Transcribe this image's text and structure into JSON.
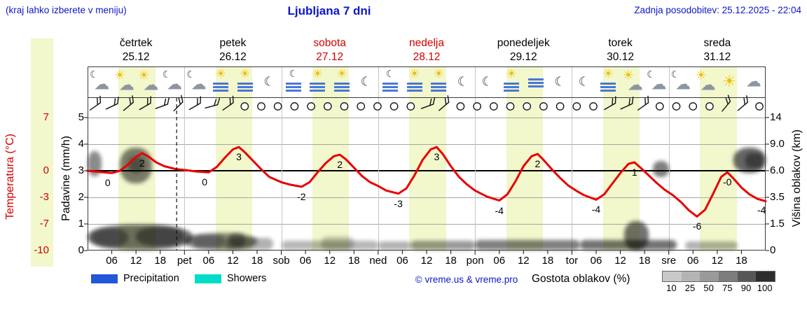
{
  "header": {
    "hint": "(kraj lahko izberete v meniju)",
    "title": "Ljubljana 7 dni",
    "updated": "Zadnja posodobitev: 25.12.2025 - 22:04"
  },
  "axes": {
    "temp_title": "Temperatura (°C)",
    "precip_title": "Padavine (mm/h)",
    "cloud_title": "Višina oblakov (km)",
    "temp_ticks": [
      {
        "label": "7",
        "line": 0
      },
      {
        "label": "0",
        "line": 2
      },
      {
        "label": "-3",
        "line": 3
      },
      {
        "label": "-7",
        "line": 4
      },
      {
        "label": "-10",
        "line": 5
      }
    ],
    "precip_ticks": [
      "5",
      "4",
      "3",
      "2",
      "1",
      "0"
    ],
    "cloud_ticks": [
      "14",
      "9.0",
      "6.0",
      "3.5",
      "1.5",
      "0"
    ]
  },
  "days": [
    {
      "name": "četrtek",
      "date": "25.12",
      "color": "#000000"
    },
    {
      "name": "petek",
      "date": "26.12",
      "color": "#000000"
    },
    {
      "name": "sobota",
      "date": "27.12",
      "color": "#d40000"
    },
    {
      "name": "nedelja",
      "date": "28.12",
      "color": "#d40000"
    },
    {
      "name": "ponedeljek",
      "date": "29.12",
      "color": "#000000"
    },
    {
      "name": "torek",
      "date": "30.12",
      "color": "#000000"
    },
    {
      "name": "sreda",
      "date": "31.12",
      "color": "#000000"
    }
  ],
  "day_icons": [
    [
      "cloud-moon",
      "sun-cloud",
      "sun-cloud",
      "cloud-moon"
    ],
    [
      "cloud-moon",
      "fog-sun",
      "fog-sun",
      "moon"
    ],
    [
      "fog-moon",
      "fog-sun",
      "fog-sun",
      "moon"
    ],
    [
      "fog-moon",
      "fog-sun",
      "fog-sun",
      "moon"
    ],
    [
      "moon",
      "fog-sun",
      "fog",
      "moon"
    ],
    [
      "moon",
      "fog-sun",
      "sun-cloud",
      "cloud-moon"
    ],
    [
      "cloud-moon",
      "sun-cloud",
      "sun",
      "cloud"
    ]
  ],
  "wind": [
    "barb:-35",
    "barb:-25",
    "barb:-40",
    "barb:-30",
    "barb:-20",
    "barb:-45",
    "barb:-30",
    "barb:-15",
    "barb:-35",
    "calm",
    "calm",
    "calm",
    "calm",
    "calm",
    "calm",
    "calm",
    "calm",
    "calm",
    "calm",
    "calm",
    "barb:-20",
    "barb:-40",
    "calm",
    "calm",
    "calm",
    "calm",
    "calm",
    "calm",
    "calm",
    "calm",
    "calm",
    "barb:-30",
    "barb:-25",
    "barb:-35",
    "calm",
    "calm",
    "calm",
    "calm",
    "barb:-50",
    "barb:-40",
    "calm"
  ],
  "x_axis": {
    "hour_labels": [
      "06",
      "12",
      "18"
    ],
    "day_abbrs": [
      "pet",
      "sob",
      "ned",
      "pon",
      "tor",
      "sre"
    ]
  },
  "legend": {
    "precipitation": "Precipitation",
    "showers": "Showers",
    "credit": "© vreme.us & vreme.pro",
    "cloud_density": "Gostota oblakov (%)",
    "scale_labels": [
      "10",
      "25",
      "50",
      "75",
      "90",
      "100"
    ],
    "scale_colors": [
      "#c9c9c9",
      "#b4b4b4",
      "#9a9a9a",
      "#7c7c7c",
      "#575757",
      "#2d2d2d"
    ]
  },
  "colors": {
    "blue_text": "#0d16c9",
    "red_text": "#d40000",
    "day_band": "#f2f7cc",
    "curve_red": "#e80000",
    "precip_blue": "#2356d9",
    "showers_cyan": "#00dcc8",
    "fog_icon_blue": "#4a78d8",
    "grid_gray": "#a5a5a5"
  },
  "chart_data": {
    "type": "line",
    "title": "Ljubljana 7 dni",
    "x_unit": "hours from četrtek 25.12 00:00 (7 days, 168 h)",
    "y_axes": {
      "temperature_c": {
        "title": "Temperatura (°C)",
        "ticks": [
          7,
          0,
          -3,
          -7,
          -10
        ]
      },
      "precipitation_mm_h": {
        "title": "Padavine (mm/h)",
        "ticks": [
          5,
          4,
          3,
          2,
          1,
          0
        ]
      },
      "cloud_height_km": {
        "title": "Višina oblakov (km)",
        "ticks": [
          14,
          9.0,
          6.0,
          3.5,
          1.5,
          0
        ]
      }
    },
    "daylight_band_hours": [
      7.7,
      16.8
    ],
    "now_marker_hour": 22.07,
    "temperature_series": [
      [
        0,
        0
      ],
      [
        2,
        -0.1
      ],
      [
        4,
        -0.2
      ],
      [
        6,
        -0.3
      ],
      [
        8,
        0
      ],
      [
        10,
        0.8
      ],
      [
        12,
        1.8
      ],
      [
        13.5,
        2.3
      ],
      [
        15,
        1.9
      ],
      [
        17,
        1.1
      ],
      [
        19,
        0.6
      ],
      [
        22,
        0.2
      ],
      [
        24,
        0.1
      ],
      [
        27,
        -0.1
      ],
      [
        30,
        -0.2
      ],
      [
        32,
        0.5
      ],
      [
        34,
        1.7
      ],
      [
        36,
        2.8
      ],
      [
        37.5,
        3.1
      ],
      [
        39,
        2.4
      ],
      [
        41,
        1.3
      ],
      [
        43,
        0.2
      ],
      [
        45,
        -0.8
      ],
      [
        48,
        -1.5
      ],
      [
        50,
        -1.8
      ],
      [
        53,
        -2.1
      ],
      [
        55,
        -1.5
      ],
      [
        57,
        -0.2
      ],
      [
        59,
        1
      ],
      [
        61,
        1.9
      ],
      [
        62.5,
        2.1
      ],
      [
        64,
        1.5
      ],
      [
        66,
        0.4
      ],
      [
        68,
        -0.7
      ],
      [
        70,
        -1.5
      ],
      [
        72,
        -2
      ],
      [
        74,
        -2.6
      ],
      [
        77,
        -3
      ],
      [
        79,
        -2.3
      ],
      [
        81,
        -0.6
      ],
      [
        83,
        1.4
      ],
      [
        85,
        2.8
      ],
      [
        86.5,
        3.1
      ],
      [
        88,
        2.2
      ],
      [
        90,
        0.6
      ],
      [
        92,
        -0.8
      ],
      [
        94,
        -1.8
      ],
      [
        96,
        -2.6
      ],
      [
        99,
        -3.4
      ],
      [
        102,
        -3.9
      ],
      [
        104,
        -3.1
      ],
      [
        106,
        -1.4
      ],
      [
        108,
        0.6
      ],
      [
        110,
        1.9
      ],
      [
        111.5,
        2.2
      ],
      [
        113,
        1.4
      ],
      [
        115,
        0.2
      ],
      [
        117,
        -0.9
      ],
      [
        119,
        -1.9
      ],
      [
        121,
        -2.6
      ],
      [
        123,
        -3.2
      ],
      [
        126,
        -3.8
      ],
      [
        128,
        -3.1
      ],
      [
        130,
        -1.7
      ],
      [
        132,
        -0.3
      ],
      [
        134,
        0.9
      ],
      [
        135.5,
        1.1
      ],
      [
        137,
        0.4
      ],
      [
        139,
        -0.6
      ],
      [
        141,
        -1.6
      ],
      [
        143,
        -2.5
      ],
      [
        145,
        -3.2
      ],
      [
        147,
        -4.1
      ],
      [
        149,
        -5.2
      ],
      [
        151,
        -6
      ],
      [
        153,
        -5.1
      ],
      [
        155,
        -3
      ],
      [
        157,
        -0.8
      ],
      [
        158.5,
        -0.2
      ],
      [
        160,
        -1
      ],
      [
        162,
        -2.2
      ],
      [
        164,
        -3.1
      ],
      [
        166,
        -3.7
      ],
      [
        168,
        -4
      ]
    ],
    "temperature_labels": [
      {
        "t": 5,
        "text": "0"
      },
      {
        "t": 13.5,
        "text": "2"
      },
      {
        "t": 29,
        "text": "0"
      },
      {
        "t": 37.5,
        "text": "3"
      },
      {
        "t": 53,
        "text": "-2"
      },
      {
        "t": 62.5,
        "text": "2"
      },
      {
        "t": 77,
        "text": "-3"
      },
      {
        "t": 86.5,
        "text": "3"
      },
      {
        "t": 102,
        "text": "-4"
      },
      {
        "t": 111.5,
        "text": "2"
      },
      {
        "t": 126,
        "text": "-4"
      },
      {
        "t": 135.5,
        "text": "1"
      },
      {
        "t": 151,
        "text": "-6"
      },
      {
        "t": 158.5,
        "text": "-0"
      },
      {
        "t": 167,
        "text": "-4"
      }
    ],
    "cloud_blobs": [
      {
        "t0": 0,
        "t1": 26,
        "km0": 0.05,
        "km1": 1.45,
        "o": 0.55
      },
      {
        "t0": 1,
        "t1": 10,
        "km0": 0.2,
        "km1": 1.25,
        "o": 0.35
      },
      {
        "t0": 12,
        "t1": 24,
        "km0": 0.25,
        "km1": 1.35,
        "o": 0.4
      },
      {
        "t0": 0,
        "t1": 3.5,
        "km0": 5.5,
        "km1": 8.2,
        "o": 0.45
      },
      {
        "t0": 8,
        "t1": 16,
        "km0": 4.8,
        "km1": 8.6,
        "o": 0.5
      },
      {
        "t0": 10,
        "t1": 14,
        "km0": 5.8,
        "km1": 7.6,
        "o": 0.35
      },
      {
        "t0": 24,
        "t1": 42,
        "km0": 0.05,
        "km1": 1.0,
        "o": 0.45
      },
      {
        "t0": 26,
        "t1": 34,
        "km0": 0.15,
        "km1": 0.85,
        "o": 0.3
      },
      {
        "t0": 34,
        "t1": 46,
        "km0": 0.05,
        "km1": 0.7,
        "o": 0.3
      },
      {
        "t0": 35,
        "t1": 39,
        "km0": 0.2,
        "km1": 1.0,
        "o": 0.35
      },
      {
        "t0": 48,
        "t1": 72,
        "km0": 0.05,
        "km1": 0.55,
        "o": 0.28
      },
      {
        "t0": 58,
        "t1": 66,
        "km0": 0.05,
        "km1": 0.8,
        "o": 0.2
      },
      {
        "t0": 72,
        "t1": 80,
        "km0": 0.05,
        "km1": 0.5,
        "o": 0.3
      },
      {
        "t0": 80,
        "t1": 96,
        "km0": 0.05,
        "km1": 0.55,
        "o": 0.4
      },
      {
        "t0": 96,
        "t1": 122,
        "km0": 0.05,
        "km1": 0.6,
        "o": 0.5
      },
      {
        "t0": 122,
        "t1": 146,
        "km0": 0.05,
        "km1": 0.6,
        "o": 0.55
      },
      {
        "t0": 133,
        "t1": 139,
        "km0": 0.05,
        "km1": 1.7,
        "o": 0.55
      },
      {
        "t0": 140,
        "t1": 144,
        "km0": 5.4,
        "km1": 7.1,
        "o": 0.5
      },
      {
        "t0": 148,
        "t1": 161,
        "km0": 0.05,
        "km1": 0.5,
        "o": 0.3
      },
      {
        "t0": 160,
        "t1": 168,
        "km0": 5.8,
        "km1": 8.6,
        "o": 0.6
      },
      {
        "t0": 163,
        "t1": 167.5,
        "km0": 6.3,
        "km1": 8.0,
        "o": 0.4
      }
    ],
    "precipitation_bars": []
  }
}
